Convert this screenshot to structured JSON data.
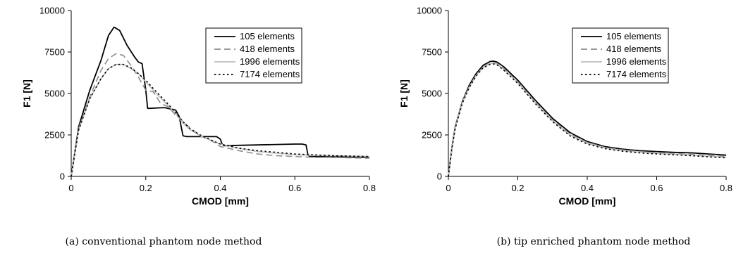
{
  "chart_data": [
    {
      "type": "line",
      "caption": "(a) conventional phantom node method",
      "xlabel": "CMOD [mm]",
      "ylabel": "F1 [N]",
      "xlim": [
        0,
        0.8
      ],
      "ylim": [
        0,
        10000
      ],
      "xticks": [
        "0",
        "0.2",
        "0.4",
        "0.6",
        "0.8"
      ],
      "yticks": [
        "0",
        "2500",
        "5000",
        "7500",
        "10000"
      ],
      "legend_position": "top-right",
      "series": [
        {
          "name": "105 elements",
          "color": "#000000",
          "style": "solid",
          "x": [
            0,
            0.02,
            0.05,
            0.08,
            0.1,
            0.115,
            0.13,
            0.15,
            0.17,
            0.18,
            0.19,
            0.2,
            0.205,
            0.21,
            0.25,
            0.28,
            0.29,
            0.295,
            0.3,
            0.31,
            0.39,
            0.4,
            0.405,
            0.41,
            0.5,
            0.6,
            0.62,
            0.63,
            0.635,
            0.64,
            0.7,
            0.8
          ],
          "y": [
            0,
            3000,
            5200,
            7000,
            8500,
            9000,
            8800,
            7900,
            7200,
            6900,
            6800,
            5200,
            4100,
            4100,
            4150,
            4000,
            3600,
            3000,
            2450,
            2400,
            2400,
            2250,
            1950,
            1850,
            1900,
            1950,
            1950,
            1900,
            1300,
            1200,
            1180,
            1150
          ]
        },
        {
          "name": "418 elements",
          "color": "#8c8c8c",
          "style": "dashed",
          "x": [
            0,
            0.02,
            0.05,
            0.08,
            0.1,
            0.12,
            0.14,
            0.16,
            0.18,
            0.2,
            0.22,
            0.24,
            0.26,
            0.28,
            0.3,
            0.32,
            0.35,
            0.38,
            0.4,
            0.45,
            0.5,
            0.55,
            0.6,
            0.65,
            0.7,
            0.75,
            0.8
          ],
          "y": [
            0,
            2900,
            4800,
            6400,
            7100,
            7400,
            7300,
            6700,
            6000,
            5200,
            5100,
            4400,
            4200,
            3700,
            3300,
            2900,
            2400,
            2100,
            1800,
            1550,
            1350,
            1250,
            1200,
            1150,
            1150,
            1120,
            1100
          ]
        },
        {
          "name": "1996 elements",
          "color": "#bdbdbd",
          "style": "solid",
          "x": [
            0,
            0.02,
            0.05,
            0.08,
            0.1,
            0.12,
            0.14,
            0.16,
            0.18,
            0.2,
            0.22,
            0.25,
            0.28,
            0.3,
            0.32,
            0.35,
            0.4,
            0.45,
            0.5,
            0.6,
            0.7,
            0.8
          ],
          "y": [
            0,
            2800,
            4700,
            5900,
            6500,
            6750,
            6750,
            6500,
            6200,
            5700,
            5200,
            4500,
            3800,
            3200,
            2800,
            2400,
            1950,
            1700,
            1500,
            1300,
            1250,
            1200
          ]
        },
        {
          "name": "7174 elements",
          "color": "#000000",
          "style": "dotted",
          "x": [
            0,
            0.02,
            0.05,
            0.08,
            0.1,
            0.12,
            0.14,
            0.16,
            0.18,
            0.2,
            0.22,
            0.25,
            0.28,
            0.3,
            0.32,
            0.35,
            0.4,
            0.45,
            0.5,
            0.6,
            0.7,
            0.8
          ],
          "y": [
            0,
            2800,
            4700,
            5900,
            6500,
            6750,
            6750,
            6550,
            6200,
            5800,
            5300,
            4600,
            3850,
            3300,
            2850,
            2450,
            1950,
            1700,
            1550,
            1350,
            1250,
            1200
          ]
        }
      ]
    },
    {
      "type": "line",
      "caption": "(b) tip enriched phantom node method",
      "xlabel": "CMOD [mm]",
      "ylabel": "F1 [N]",
      "xlim": [
        0,
        0.8
      ],
      "ylim": [
        0,
        10000
      ],
      "xticks": [
        "0",
        "0.2",
        "0.4",
        "0.6",
        "0.8"
      ],
      "yticks": [
        "0",
        "2500",
        "5000",
        "7500",
        "10000"
      ],
      "legend_position": "top-right",
      "series": [
        {
          "name": "105 elements",
          "color": "#000000",
          "style": "solid",
          "x": [
            0,
            0.01,
            0.02,
            0.04,
            0.06,
            0.08,
            0.1,
            0.12,
            0.13,
            0.14,
            0.16,
            0.18,
            0.2,
            0.25,
            0.3,
            0.35,
            0.4,
            0.45,
            0.5,
            0.55,
            0.6,
            0.65,
            0.7,
            0.75,
            0.8
          ],
          "y": [
            0,
            1700,
            3000,
            4500,
            5500,
            6200,
            6700,
            6930,
            6950,
            6900,
            6600,
            6200,
            5800,
            4600,
            3500,
            2650,
            2100,
            1800,
            1650,
            1550,
            1500,
            1450,
            1420,
            1350,
            1280
          ]
        },
        {
          "name": "418 elements",
          "color": "#8c8c8c",
          "style": "dashed",
          "x": [
            0,
            0.01,
            0.02,
            0.04,
            0.06,
            0.08,
            0.1,
            0.12,
            0.13,
            0.14,
            0.16,
            0.18,
            0.2,
            0.25,
            0.3,
            0.35,
            0.4,
            0.45,
            0.5,
            0.55,
            0.6,
            0.65,
            0.7,
            0.75,
            0.8
          ],
          "y": [
            0,
            1650,
            2950,
            4450,
            5400,
            6100,
            6600,
            6820,
            6850,
            6800,
            6500,
            6100,
            5700,
            4500,
            3400,
            2550,
            2050,
            1750,
            1600,
            1500,
            1430,
            1380,
            1330,
            1250,
            1200
          ]
        },
        {
          "name": "1996 elements",
          "color": "#bdbdbd",
          "style": "solid",
          "x": [
            0,
            0.01,
            0.02,
            0.04,
            0.06,
            0.08,
            0.1,
            0.12,
            0.13,
            0.14,
            0.16,
            0.18,
            0.2,
            0.25,
            0.3,
            0.35,
            0.4,
            0.45,
            0.5,
            0.55,
            0.6,
            0.65,
            0.7,
            0.75,
            0.8
          ],
          "y": [
            0,
            1650,
            2950,
            4450,
            5400,
            6100,
            6580,
            6800,
            6820,
            6770,
            6450,
            6050,
            5650,
            4450,
            3350,
            2500,
            2000,
            1720,
            1560,
            1460,
            1390,
            1340,
            1290,
            1210,
            1160
          ]
        },
        {
          "name": "7174 elements",
          "color": "#000000",
          "style": "dotted",
          "x": [
            0,
            0.01,
            0.02,
            0.04,
            0.06,
            0.08,
            0.1,
            0.12,
            0.13,
            0.14,
            0.16,
            0.18,
            0.2,
            0.25,
            0.3,
            0.35,
            0.4,
            0.45,
            0.5,
            0.55,
            0.6,
            0.65,
            0.7,
            0.75,
            0.8
          ],
          "y": [
            0,
            1650,
            2900,
            4400,
            5350,
            6050,
            6550,
            6750,
            6780,
            6730,
            6400,
            6000,
            5600,
            4400,
            3300,
            2450,
            1950,
            1680,
            1520,
            1420,
            1350,
            1300,
            1250,
            1180,
            1120
          ]
        }
      ]
    }
  ]
}
